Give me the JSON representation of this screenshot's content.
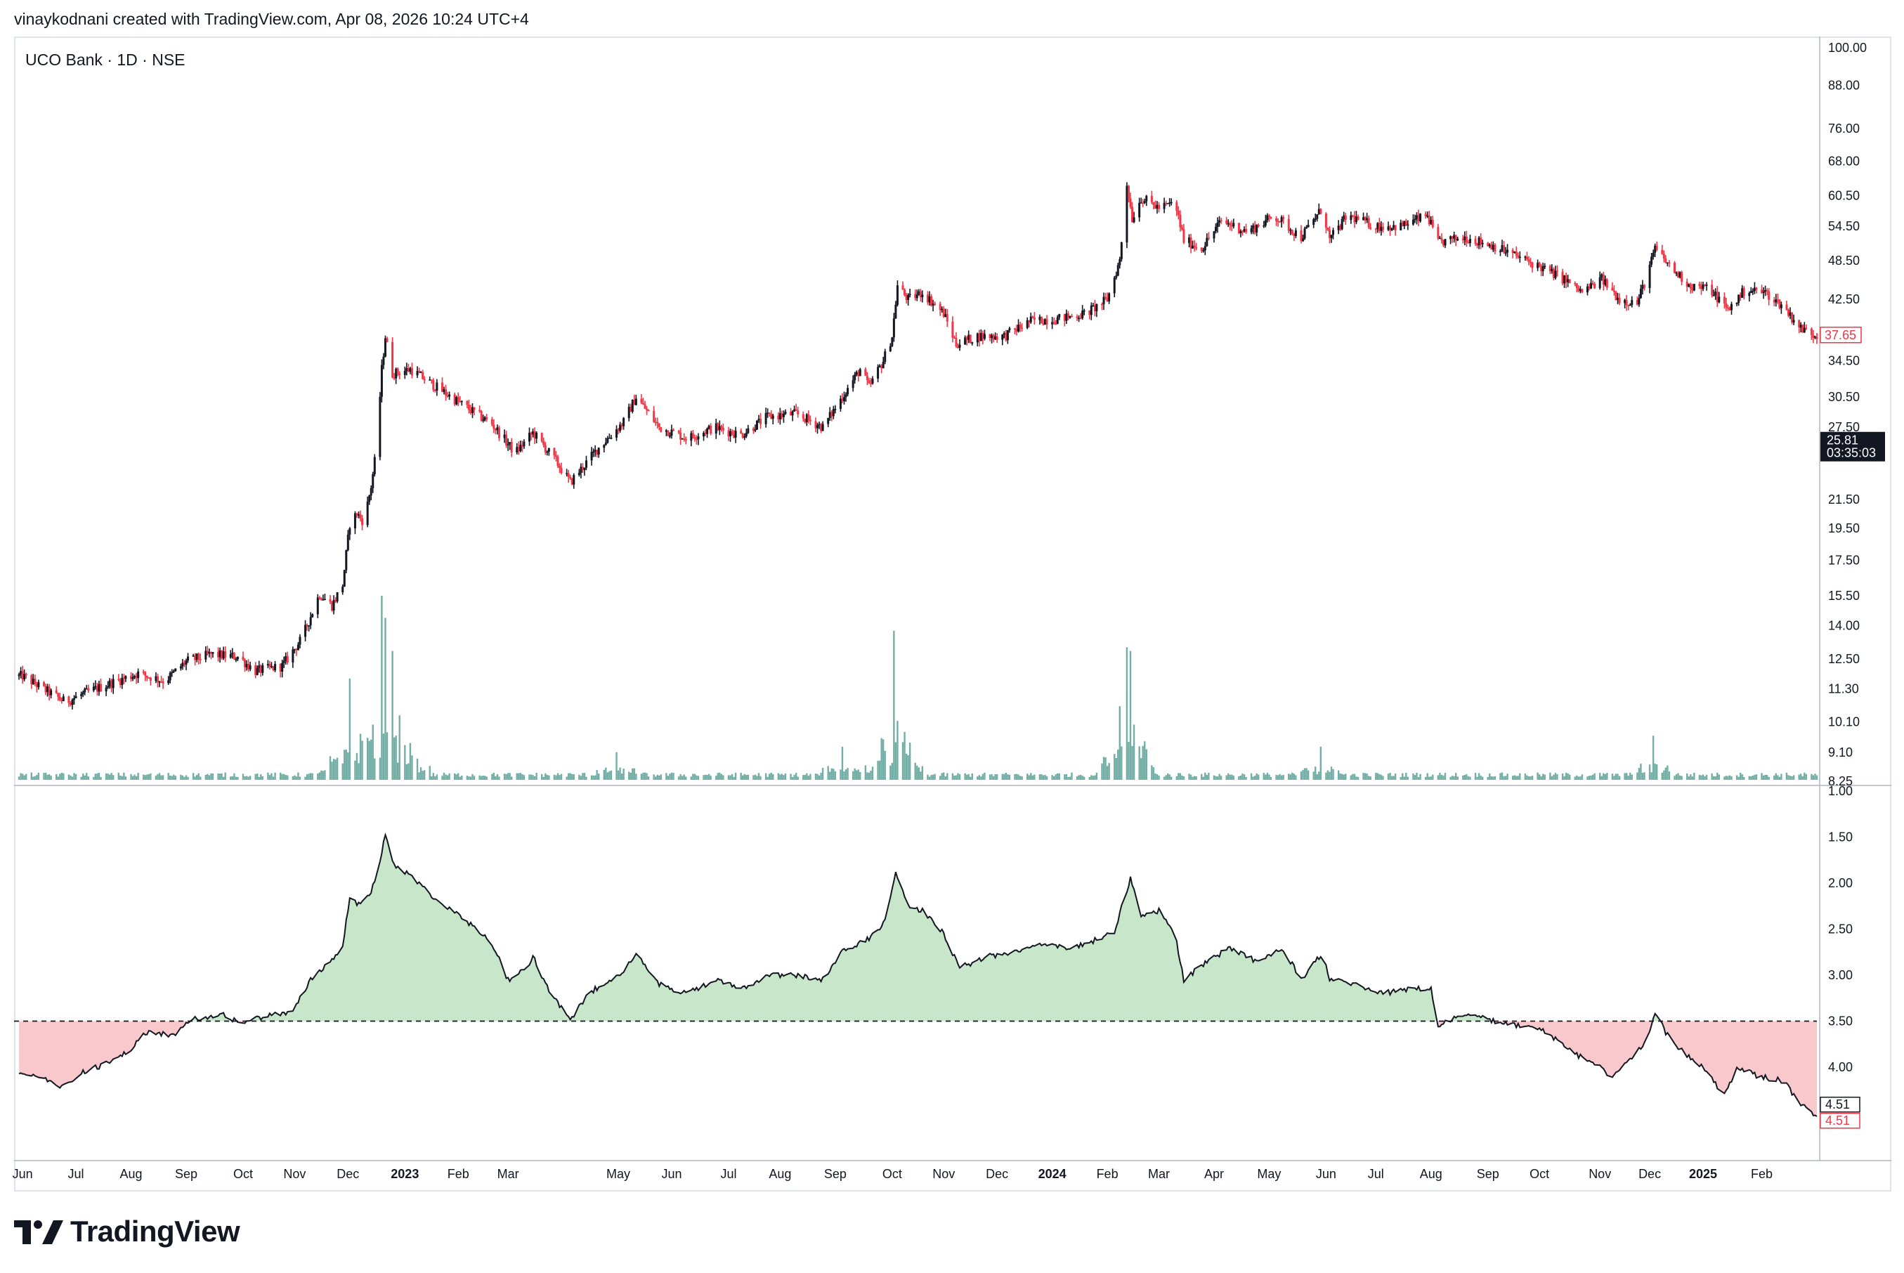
{
  "header": {
    "attribution": "vinaykodnani created with TradingView.com, Apr 08, 2026 10:24 UTC+4"
  },
  "branding": {
    "logo_text": "TradingView"
  },
  "colors": {
    "up": "#131722",
    "down": "#f23645",
    "volume": "#4f9a8f",
    "ratio_fill_above": "#c8e6c9",
    "ratio_fill_below": "#f8c8cc",
    "ratio_line": "#131722"
  },
  "chart_data": {
    "type": "candlestick",
    "title": "UCO Bank · 1D · NSE",
    "price_panel": {
      "scale": "log",
      "ylim": [
        8.25,
        100.0
      ],
      "y_ticks": [
        100.0,
        88.0,
        76.0,
        68.0,
        60.5,
        54.5,
        48.5,
        42.5,
        34.5,
        30.5,
        27.5,
        21.5,
        19.5,
        17.5,
        15.5,
        14.0,
        12.5,
        11.3,
        10.1,
        9.1,
        8.25
      ],
      "y_tick_labels": [
        "100.00",
        "88.00",
        "76.00",
        "68.00",
        "60.50",
        "54.50",
        "48.50",
        "42.50",
        "34.50",
        "30.50",
        "27.50",
        "21.50",
        "19.50",
        "17.50",
        "15.50",
        "14.00",
        "12.50",
        "11.30",
        "10.10",
        "9.10",
        "8.25"
      ],
      "last_price_label": "37.65",
      "last_price": 37.65,
      "marker_price_label": "25.81",
      "marker_countdown_label": "03:35:03",
      "marker_price": 25.81,
      "price_path": [
        [
          "2022-06-01",
          11.8
        ],
        [
          "2022-06-15",
          11.2
        ],
        [
          "2022-06-25",
          10.8
        ],
        [
          "2022-07-05",
          11.1
        ],
        [
          "2022-07-20",
          11.5
        ],
        [
          "2022-08-05",
          11.9
        ],
        [
          "2022-08-20",
          11.6
        ],
        [
          "2022-09-01",
          12.4
        ],
        [
          "2022-09-15",
          12.7
        ],
        [
          "2022-09-30",
          12.6
        ],
        [
          "2022-10-10",
          12.0
        ],
        [
          "2022-10-25",
          12.2
        ],
        [
          "2022-11-05",
          13.4
        ],
        [
          "2022-11-15",
          15.6
        ],
        [
          "2022-11-22",
          15.0
        ],
        [
          "2022-11-28",
          16.1
        ],
        [
          "2022-12-02",
          19.8
        ],
        [
          "2022-12-06",
          20.5
        ],
        [
          "2022-12-10",
          19.9
        ],
        [
          "2022-12-14",
          22.5
        ],
        [
          "2022-12-17",
          25.5
        ],
        [
          "2022-12-20",
          33.5
        ],
        [
          "2022-12-22",
          37.5
        ],
        [
          "2022-12-26",
          33.0
        ],
        [
          "2023-01-05",
          33.5
        ],
        [
          "2023-01-20",
          31.5
        ],
        [
          "2023-02-05",
          29.5
        ],
        [
          "2023-02-20",
          27.8
        ],
        [
          "2023-03-05",
          25.2
        ],
        [
          "2023-03-15",
          27.0
        ],
        [
          "2023-03-28",
          24.5
        ],
        [
          "2023-04-05",
          22.8
        ],
        [
          "2023-04-20",
          25.5
        ],
        [
          "2023-05-05",
          28.0
        ],
        [
          "2023-05-12",
          30.5
        ],
        [
          "2023-05-25",
          27.5
        ],
        [
          "2023-06-10",
          26.5
        ],
        [
          "2023-06-25",
          27.5
        ],
        [
          "2023-07-10",
          26.8
        ],
        [
          "2023-07-25",
          28.5
        ],
        [
          "2023-08-10",
          28.8
        ],
        [
          "2023-08-25",
          27.5
        ],
        [
          "2023-09-05",
          30.5
        ],
        [
          "2023-09-15",
          33.5
        ],
        [
          "2023-09-20",
          31.5
        ],
        [
          "2023-09-28",
          34.5
        ],
        [
          "2023-10-03",
          37.5
        ],
        [
          "2023-10-06",
          44.5
        ],
        [
          "2023-10-12",
          42.5
        ],
        [
          "2023-10-20",
          43.5
        ],
        [
          "2023-11-01",
          40.5
        ],
        [
          "2023-11-08",
          36.5
        ],
        [
          "2023-11-20",
          37.5
        ],
        [
          "2023-12-05",
          37.5
        ],
        [
          "2023-12-20",
          39.5
        ],
        [
          "2024-01-05",
          39.8
        ],
        [
          "2024-01-20",
          40.5
        ],
        [
          "2024-02-01",
          42.5
        ],
        [
          "2024-02-08",
          48.5
        ],
        [
          "2024-02-12",
          63.0
        ],
        [
          "2024-02-15",
          56.0
        ],
        [
          "2024-02-20",
          60.0
        ],
        [
          "2024-03-01",
          58.0
        ],
        [
          "2024-03-10",
          59.0
        ],
        [
          "2024-03-15",
          52.0
        ],
        [
          "2024-03-25",
          50.5
        ],
        [
          "2024-04-05",
          55.5
        ],
        [
          "2024-04-20",
          53.5
        ],
        [
          "2024-05-05",
          56.5
        ],
        [
          "2024-05-20",
          52.5
        ],
        [
          "2024-06-01",
          58.0
        ],
        [
          "2024-06-05",
          52.0
        ],
        [
          "2024-06-15",
          56.5
        ],
        [
          "2024-07-01",
          54.5
        ],
        [
          "2024-07-15",
          54.5
        ],
        [
          "2024-07-30",
          56.5
        ],
        [
          "2024-08-05",
          51.5
        ],
        [
          "2024-08-20",
          52.5
        ],
        [
          "2024-09-05",
          51.0
        ],
        [
          "2024-09-20",
          49.0
        ],
        [
          "2024-10-01",
          47.5
        ],
        [
          "2024-10-15",
          45.5
        ],
        [
          "2024-10-25",
          43.5
        ],
        [
          "2024-11-05",
          45.5
        ],
        [
          "2024-11-15",
          42.5
        ],
        [
          "2024-11-25",
          42.0
        ],
        [
          "2024-12-01",
          46.5
        ],
        [
          "2024-12-05",
          50.5
        ],
        [
          "2024-12-15",
          47.0
        ],
        [
          "2024-12-25",
          44.5
        ],
        [
          "2025-01-05",
          44.0
        ],
        [
          "2025-01-15",
          41.0
        ],
        [
          "2025-01-25",
          44.0
        ],
        [
          "2025-02-05",
          43.5
        ],
        [
          "2025-02-15",
          41.5
        ],
        [
          "2025-02-25",
          38.5
        ],
        [
          "2025-03-05",
          37.65
        ]
      ]
    },
    "volume_spikes": [
      [
        "2022-11-25",
        0.12
      ],
      [
        "2022-12-02",
        0.55
      ],
      [
        "2022-12-08",
        0.25
      ],
      [
        "2022-12-15",
        0.3
      ],
      [
        "2022-12-20",
        1.0
      ],
      [
        "2022-12-22",
        0.88
      ],
      [
        "2022-12-26",
        0.7
      ],
      [
        "2022-12-30",
        0.35
      ],
      [
        "2023-01-05",
        0.2
      ],
      [
        "2023-05-01",
        0.15
      ],
      [
        "2023-09-05",
        0.18
      ],
      [
        "2023-09-28",
        0.22
      ],
      [
        "2023-10-04",
        0.81
      ],
      [
        "2023-10-06",
        0.32
      ],
      [
        "2023-10-10",
        0.26
      ],
      [
        "2024-02-08",
        0.4
      ],
      [
        "2024-02-12",
        0.72
      ],
      [
        "2024-02-14",
        0.7
      ],
      [
        "2024-02-16",
        0.3
      ],
      [
        "2024-05-31",
        0.18
      ],
      [
        "2024-12-04",
        0.24
      ]
    ],
    "ratio_panel": {
      "scale": "inverted",
      "ylim": [
        1.0,
        5.0
      ],
      "y_ticks": [
        1.0,
        1.5,
        2.0,
        2.5,
        3.0,
        3.5,
        4.0
      ],
      "y_tick_labels": [
        "1.00",
        "1.50",
        "2.00",
        "2.50",
        "3.00",
        "3.50",
        "4.00"
      ],
      "baseline": 3.5,
      "last_value_labels": [
        "4.51",
        "4.51"
      ],
      "series": [
        [
          "2022-06-01",
          4.05
        ],
        [
          "2022-06-15",
          4.15
        ],
        [
          "2022-06-25",
          4.22
        ],
        [
          "2022-07-05",
          4.05
        ],
        [
          "2022-07-20",
          3.95
        ],
        [
          "2022-08-01",
          3.8
        ],
        [
          "2022-08-10",
          3.62
        ],
        [
          "2022-08-25",
          3.65
        ],
        [
          "2022-09-05",
          3.48
        ],
        [
          "2022-09-20",
          3.42
        ],
        [
          "2022-10-01",
          3.52
        ],
        [
          "2022-10-15",
          3.45
        ],
        [
          "2022-10-30",
          3.4
        ],
        [
          "2022-11-10",
          3.05
        ],
        [
          "2022-11-20",
          2.88
        ],
        [
          "2022-11-28",
          2.7
        ],
        [
          "2022-12-02",
          2.15
        ],
        [
          "2022-12-08",
          2.25
        ],
        [
          "2022-12-14",
          2.08
        ],
        [
          "2022-12-18",
          1.85
        ],
        [
          "2022-12-22",
          1.48
        ],
        [
          "2022-12-26",
          1.78
        ],
        [
          "2023-01-05",
          1.92
        ],
        [
          "2023-01-20",
          2.18
        ],
        [
          "2023-02-05",
          2.4
        ],
        [
          "2023-02-20",
          2.65
        ],
        [
          "2023-03-01",
          3.05
        ],
        [
          "2023-03-10",
          2.95
        ],
        [
          "2023-03-15",
          2.8
        ],
        [
          "2023-03-25",
          3.2
        ],
        [
          "2023-04-05",
          3.5
        ],
        [
          "2023-04-15",
          3.2
        ],
        [
          "2023-05-05",
          2.95
        ],
        [
          "2023-05-12",
          2.78
        ],
        [
          "2023-05-25",
          3.1
        ],
        [
          "2023-06-10",
          3.2
        ],
        [
          "2023-06-25",
          3.05
        ],
        [
          "2023-07-10",
          3.15
        ],
        [
          "2023-07-25",
          3.0
        ],
        [
          "2023-08-10",
          3.0
        ],
        [
          "2023-08-25",
          3.05
        ],
        [
          "2023-09-05",
          2.75
        ],
        [
          "2023-09-20",
          2.6
        ],
        [
          "2023-09-28",
          2.45
        ],
        [
          "2023-10-05",
          1.88
        ],
        [
          "2023-10-12",
          2.25
        ],
        [
          "2023-10-20",
          2.3
        ],
        [
          "2023-11-01",
          2.55
        ],
        [
          "2023-11-10",
          2.92
        ],
        [
          "2023-11-25",
          2.8
        ],
        [
          "2023-12-10",
          2.75
        ],
        [
          "2023-12-25",
          2.65
        ],
        [
          "2024-01-10",
          2.72
        ],
        [
          "2024-01-25",
          2.62
        ],
        [
          "2024-02-05",
          2.52
        ],
        [
          "2024-02-10",
          2.2
        ],
        [
          "2024-02-14",
          1.95
        ],
        [
          "2024-02-20",
          2.35
        ],
        [
          "2024-03-01",
          2.3
        ],
        [
          "2024-03-10",
          2.55
        ],
        [
          "2024-03-15",
          3.05
        ],
        [
          "2024-03-25",
          2.9
        ],
        [
          "2024-04-10",
          2.7
        ],
        [
          "2024-04-25",
          2.85
        ],
        [
          "2024-05-10",
          2.72
        ],
        [
          "2024-05-20",
          3.05
        ],
        [
          "2024-06-01",
          2.75
        ],
        [
          "2024-06-05",
          3.05
        ],
        [
          "2024-06-20",
          3.1
        ],
        [
          "2024-07-05",
          3.2
        ],
        [
          "2024-07-20",
          3.15
        ],
        [
          "2024-08-01",
          3.15
        ],
        [
          "2024-08-05",
          3.55
        ],
        [
          "2024-08-20",
          3.42
        ],
        [
          "2024-09-05",
          3.5
        ],
        [
          "2024-09-20",
          3.55
        ],
        [
          "2024-10-05",
          3.62
        ],
        [
          "2024-10-20",
          3.85
        ],
        [
          "2024-11-01",
          3.95
        ],
        [
          "2024-11-10",
          4.1
        ],
        [
          "2024-11-20",
          3.95
        ],
        [
          "2024-12-01",
          3.7
        ],
        [
          "2024-12-05",
          3.42
        ],
        [
          "2024-12-15",
          3.75
        ],
        [
          "2024-12-25",
          3.9
        ],
        [
          "2025-01-05",
          4.05
        ],
        [
          "2025-01-12",
          4.35
        ],
        [
          "2025-01-20",
          4.0
        ],
        [
          "2025-02-01",
          4.1
        ],
        [
          "2025-02-15",
          4.15
        ],
        [
          "2025-02-25",
          4.4
        ],
        [
          "2025-03-05",
          4.51
        ]
      ]
    },
    "x_axis": {
      "start": "2022-05-28",
      "end": "2025-03-06",
      "ticks": [
        {
          "date": "2022-06-01",
          "label": "Jun",
          "bold": false
        },
        {
          "date": "2022-07-01",
          "label": "Jul",
          "bold": false
        },
        {
          "date": "2022-08-01",
          "label": "Aug",
          "bold": false
        },
        {
          "date": "2022-09-01",
          "label": "Sep",
          "bold": false
        },
        {
          "date": "2022-10-03",
          "label": "Oct",
          "bold": false
        },
        {
          "date": "2022-11-01",
          "label": "Nov",
          "bold": false
        },
        {
          "date": "2022-12-01",
          "label": "Dec",
          "bold": false
        },
        {
          "date": "2023-01-02",
          "label": "2023",
          "bold": true
        },
        {
          "date": "2023-02-01",
          "label": "Feb",
          "bold": false
        },
        {
          "date": "2023-03-01",
          "label": "Mar",
          "bold": false
        },
        {
          "date": "2023-05-02",
          "label": "May",
          "bold": false
        },
        {
          "date": "2023-06-01",
          "label": "Jun",
          "bold": false
        },
        {
          "date": "2023-07-03",
          "label": "Jul",
          "bold": false
        },
        {
          "date": "2023-08-01",
          "label": "Aug",
          "bold": false
        },
        {
          "date": "2023-09-01",
          "label": "Sep",
          "bold": false
        },
        {
          "date": "2023-10-03",
          "label": "Oct",
          "bold": false
        },
        {
          "date": "2023-11-01",
          "label": "Nov",
          "bold": false
        },
        {
          "date": "2023-12-01",
          "label": "Dec",
          "bold": false
        },
        {
          "date": "2024-01-01",
          "label": "2024",
          "bold": true
        },
        {
          "date": "2024-02-01",
          "label": "Feb",
          "bold": false
        },
        {
          "date": "2024-03-01",
          "label": "Mar",
          "bold": false
        },
        {
          "date": "2024-04-01",
          "label": "Apr",
          "bold": false
        },
        {
          "date": "2024-05-02",
          "label": "May",
          "bold": false
        },
        {
          "date": "2024-06-03",
          "label": "Jun",
          "bold": false
        },
        {
          "date": "2024-07-01",
          "label": "Jul",
          "bold": false
        },
        {
          "date": "2024-08-01",
          "label": "Aug",
          "bold": false
        },
        {
          "date": "2024-09-02",
          "label": "Sep",
          "bold": false
        },
        {
          "date": "2024-10-01",
          "label": "Oct",
          "bold": false
        },
        {
          "date": "2024-11-04",
          "label": "Nov",
          "bold": false
        },
        {
          "date": "2024-12-02",
          "label": "Dec",
          "bold": false
        },
        {
          "date": "2025-01-01",
          "label": "2025",
          "bold": true
        },
        {
          "date": "2025-02-03",
          "label": "Feb",
          "bold": false
        }
      ]
    }
  }
}
